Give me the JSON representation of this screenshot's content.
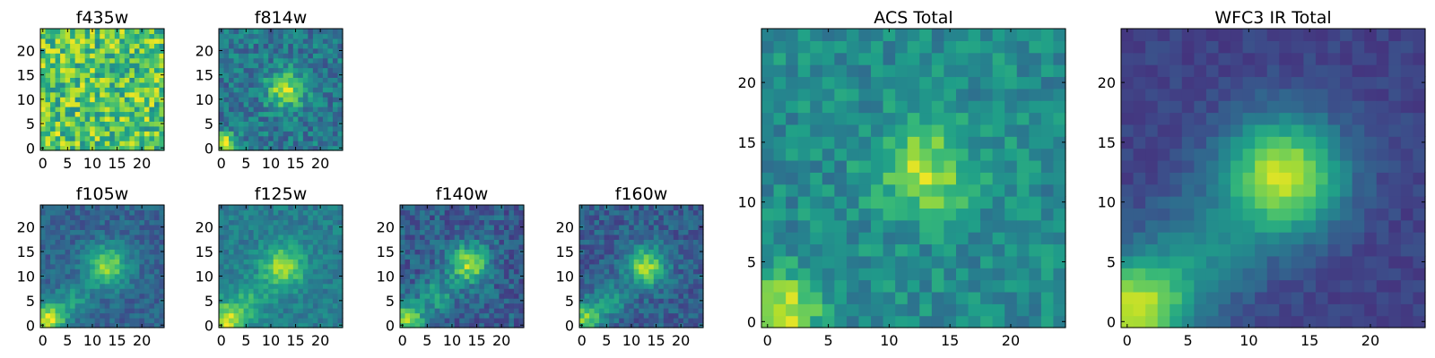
{
  "chart_data": [
    {
      "type": "heatmap",
      "title": "f435w",
      "xticks": [
        "0",
        "5",
        "10",
        "15",
        "20"
      ],
      "yticks": [
        "0",
        "5",
        "10",
        "15",
        "20"
      ],
      "xlim": [
        -0.5,
        24.5
      ],
      "ylim": [
        -0.5,
        24.5
      ],
      "grid_size": [
        25,
        25
      ],
      "colormap": "viridis",
      "grid": false,
      "seed": 11,
      "features": {
        "background": 0.72,
        "noise": 0.26,
        "blobs": [
          [
            1,
            1,
            1.5,
            0.2
          ]
        ]
      }
    },
    {
      "type": "heatmap",
      "title": "f814w",
      "xticks": [
        "0",
        "5",
        "10",
        "15",
        "20"
      ],
      "yticks": [
        "0",
        "5",
        "10",
        "15",
        "20"
      ],
      "xlim": [
        -0.5,
        24.5
      ],
      "ylim": [
        -0.5,
        24.5
      ],
      "grid_size": [
        25,
        25
      ],
      "colormap": "viridis",
      "grid": false,
      "seed": 23,
      "features": {
        "background": 0.4,
        "noise": 0.16,
        "blobs": [
          [
            13,
            12,
            2.6,
            0.5
          ],
          [
            0.8,
            0.8,
            1.6,
            0.58
          ]
        ]
      }
    },
    {
      "type": "heatmap",
      "title": "f105w",
      "xticks": [
        "0",
        "5",
        "10",
        "15",
        "20"
      ],
      "yticks": [
        "0",
        "5",
        "10",
        "15",
        "20"
      ],
      "xlim": [
        -0.5,
        24.5
      ],
      "ylim": [
        -0.5,
        24.5
      ],
      "grid_size": [
        25,
        25
      ],
      "colormap": "viridis",
      "grid": false,
      "seed": 37,
      "features": {
        "background": 0.32,
        "noise": 0.1,
        "blobs": [
          [
            13,
            12,
            3.0,
            0.5
          ],
          [
            1,
            1,
            2.4,
            0.62
          ],
          [
            6,
            5,
            2.5,
            0.22
          ]
        ]
      }
    },
    {
      "type": "heatmap",
      "title": "f125w",
      "xticks": [
        "0",
        "5",
        "10",
        "15",
        "20"
      ],
      "yticks": [
        "0",
        "5",
        "10",
        "15",
        "20"
      ],
      "xlim": [
        -0.5,
        24.5
      ],
      "ylim": [
        -0.5,
        24.5
      ],
      "grid_size": [
        25,
        25
      ],
      "colormap": "viridis",
      "grid": false,
      "seed": 41,
      "features": {
        "background": 0.42,
        "noise": 0.1,
        "blobs": [
          [
            12.5,
            12,
            3.0,
            0.45
          ],
          [
            1,
            1,
            2.6,
            0.5
          ],
          [
            6,
            5,
            2.6,
            0.2
          ]
        ]
      }
    },
    {
      "type": "heatmap",
      "title": "f140w",
      "xticks": [
        "0",
        "5",
        "10",
        "15",
        "20"
      ],
      "yticks": [
        "0",
        "5",
        "10",
        "15",
        "20"
      ],
      "xlim": [
        -0.5,
        24.5
      ],
      "ylim": [
        -0.5,
        24.5
      ],
      "grid_size": [
        25,
        25
      ],
      "colormap": "viridis",
      "grid": false,
      "seed": 53,
      "features": {
        "background": 0.3,
        "noise": 0.14,
        "blobs": [
          [
            13.5,
            12.5,
            2.8,
            0.55
          ],
          [
            1,
            1,
            2.4,
            0.55
          ],
          [
            7,
            6,
            2.6,
            0.25
          ]
        ]
      }
    },
    {
      "type": "heatmap",
      "title": "f160w",
      "xticks": [
        "0",
        "5",
        "10",
        "15",
        "20"
      ],
      "yticks": [
        "0",
        "5",
        "10",
        "15",
        "20"
      ],
      "xlim": [
        -0.5,
        24.5
      ],
      "ylim": [
        -0.5,
        24.5
      ],
      "grid_size": [
        25,
        25
      ],
      "colormap": "viridis",
      "grid": false,
      "seed": 67,
      "features": {
        "background": 0.3,
        "noise": 0.12,
        "blobs": [
          [
            13,
            12,
            2.8,
            0.55
          ],
          [
            0.8,
            1.5,
            2.3,
            0.52
          ],
          [
            6,
            5,
            2.4,
            0.2
          ]
        ]
      }
    },
    {
      "type": "heatmap",
      "title": "ACS Total",
      "xticks": [
        "0",
        "5",
        "10",
        "15",
        "20"
      ],
      "yticks": [
        "0",
        "5",
        "10",
        "15",
        "20"
      ],
      "xlim": [
        -0.5,
        24.5
      ],
      "ylim": [
        -0.5,
        24.5
      ],
      "grid_size": [
        25,
        25
      ],
      "colormap": "viridis",
      "grid": false,
      "seed": 79,
      "features": {
        "background": 0.48,
        "noise": 0.13,
        "blobs": [
          [
            13,
            12.5,
            2.7,
            0.38
          ],
          [
            1,
            1,
            2.3,
            0.45
          ]
        ]
      }
    },
    {
      "type": "heatmap",
      "title": "WFC3 IR Total",
      "xticks": [
        "0",
        "5",
        "10",
        "15",
        "20"
      ],
      "yticks": [
        "0",
        "5",
        "10",
        "15",
        "20"
      ],
      "xlim": [
        -0.5,
        24.5
      ],
      "ylim": [
        -0.5,
        24.5
      ],
      "grid_size": [
        25,
        25
      ],
      "colormap": "viridis",
      "grid": false,
      "seed": 97,
      "features": {
        "background": 0.2,
        "noise": 0.05,
        "blobs": [
          [
            12.8,
            12.2,
            3.4,
            0.72
          ],
          [
            0.6,
            0.8,
            3.0,
            0.72
          ],
          [
            6,
            5.5,
            3.4,
            0.25
          ]
        ]
      }
    }
  ]
}
